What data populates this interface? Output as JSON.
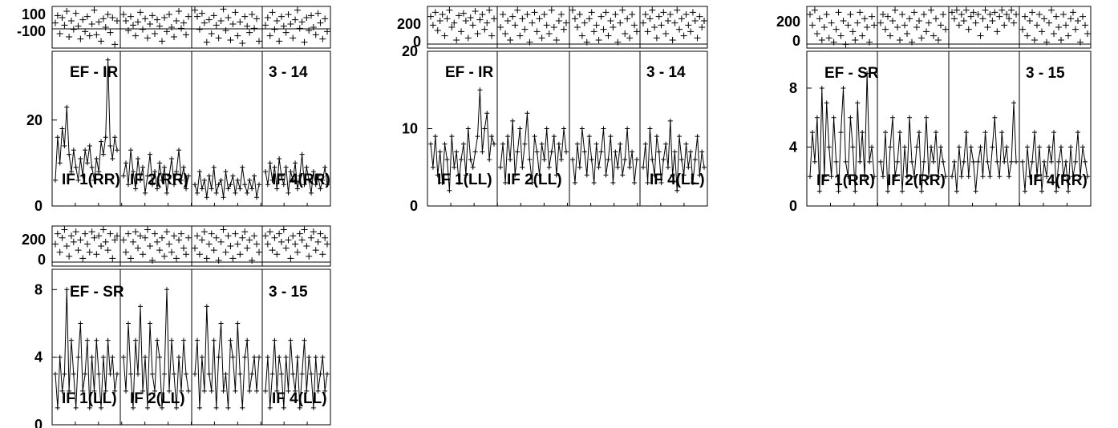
{
  "chart_data": [
    {
      "type": "line",
      "panel": "EF - IR",
      "baseline": "3 - 14",
      "phase_ticks": [
        "100",
        "-100"
      ],
      "phase_ylim": [
        -180,
        180
      ],
      "amp_ticks": [
        {
          "value": 0,
          "label": "0"
        },
        {
          "value": 20,
          "label": "20"
        }
      ],
      "amp_ylim": [
        0,
        36
      ],
      "segments": [
        {
          "label": "IF 1(RR)",
          "amp": [
            6,
            16,
            10,
            18,
            14,
            23,
            12,
            8,
            13,
            9,
            6,
            11,
            7,
            13,
            10,
            14,
            9,
            6,
            11,
            8,
            15,
            12,
            16,
            34,
            14,
            11,
            16,
            13
          ],
          "phase": [
            40,
            110,
            -60,
            90,
            20,
            150,
            -90,
            60,
            -20,
            130,
            10,
            -110,
            70,
            -40,
            100,
            -80,
            30,
            160,
            -70,
            50,
            -130,
            80,
            0,
            120,
            -50,
            90,
            -160,
            60
          ]
        },
        {
          "label": "IF 2(RR)",
          "amp": [
            7,
            10,
            5,
            13,
            8,
            4,
            11,
            6,
            9,
            3,
            7,
            12,
            5,
            8,
            4,
            10,
            6,
            9,
            3,
            7,
            11,
            5,
            8,
            13,
            6,
            9,
            4,
            7
          ],
          "phase": [
            120,
            60,
            -30,
            100,
            20,
            -80,
            50,
            140,
            -20,
            80,
            -100,
            30,
            110,
            -60,
            70,
            10,
            -130,
            90,
            -40,
            120,
            0,
            -90,
            60,
            150,
            -10,
            40,
            -70,
            100
          ]
        },
        {
          "label": "",
          "amp": [
            5,
            3,
            8,
            4,
            6,
            2,
            7,
            4,
            9,
            3,
            5,
            6,
            2,
            8,
            4,
            5,
            7,
            3,
            6,
            4,
            9,
            5,
            3,
            6,
            4,
            7,
            2,
            5
          ],
          "phase": [
            160,
            100,
            -20,
            130,
            40,
            -140,
            70,
            -60,
            110,
            20,
            -100,
            60,
            170,
            -30,
            90,
            -120,
            30,
            140,
            -80,
            50,
            -150,
            100,
            10,
            -50,
            120,
            -10,
            80,
            -130
          ]
        },
        {
          "label": "IF 4(RR)",
          "amp": [
            8,
            5,
            10,
            6,
            9,
            4,
            11,
            7,
            5,
            9,
            3,
            8,
            6,
            10,
            4,
            7,
            12,
            5,
            9,
            6,
            3,
            8,
            5,
            7,
            4,
            6,
            9,
            5
          ],
          "phase": [
            20,
            90,
            -80,
            140,
            -20,
            60,
            -130,
            100,
            10,
            -50,
            120,
            30,
            -100,
            70,
            160,
            -10,
            50,
            -140,
            90,
            -30,
            110,
            0,
            -70,
            130,
            40,
            -110,
            80,
            -40
          ]
        }
      ]
    },
    {
      "type": "line",
      "panel": "EF - IR",
      "baseline": "3 - 14",
      "phase_ticks": [
        "200",
        "0"
      ],
      "phase_ylim": [
        0,
        360
      ],
      "amp_ticks": [
        {
          "value": 0,
          "label": "0"
        },
        {
          "value": 10,
          "label": "10"
        },
        {
          "value": 20,
          "label": "20"
        }
      ],
      "amp_ylim": [
        0,
        20
      ],
      "segments": [
        {
          "label": "IF 1(LL)",
          "amp": [
            8,
            5,
            9,
            4,
            7,
            3,
            8,
            6,
            2,
            9,
            5,
            7,
            3,
            6,
            8,
            4,
            10,
            6,
            5,
            7,
            9,
            15,
            7,
            10,
            12,
            6,
            9,
            8
          ],
          "phase": [
            280,
            200,
            320,
            150,
            240,
            300,
            100,
            260,
            340,
            180,
            220,
            60,
            290,
            140,
            310,
            240,
            80,
            270,
            200,
            330,
            120,
            250,
            300,
            160,
            220,
            340,
            100,
            260
          ]
        },
        {
          "label": "IF 2(LL)",
          "amp": [
            5,
            8,
            3,
            9,
            6,
            11,
            4,
            7,
            10,
            5,
            8,
            12,
            6,
            3,
            9,
            7,
            4,
            8,
            6,
            10,
            5,
            7,
            9,
            4,
            8,
            6,
            10,
            7
          ],
          "phase": [
            180,
            300,
            120,
            240,
            60,
            280,
            200,
            340,
            100,
            260,
            160,
            300,
            40,
            220,
            320,
            140,
            260,
            80,
            300,
            200,
            120,
            340,
            180,
            60,
            240,
            300,
            160,
            220
          ]
        },
        {
          "label": "",
          "amp": [
            6,
            3,
            8,
            5,
            10,
            7,
            4,
            9,
            6,
            3,
            8,
            5,
            7,
            10,
            4,
            6,
            9,
            3,
            7,
            5,
            8,
            4,
            6,
            10,
            5,
            7,
            3,
            6
          ],
          "phase": [
            340,
            260,
            180,
            300,
            100,
            220,
            40,
            260,
            320,
            140,
            200,
            60,
            280,
            160,
            320,
            100,
            240,
            180,
            300,
            40,
            220,
            340,
            120,
            260,
            80,
            300,
            200,
            140
          ]
        },
        {
          "label": "IF 4(LL)",
          "amp": [
            5,
            8,
            3,
            10,
            6,
            4,
            9,
            7,
            3,
            6,
            8,
            5,
            11,
            4,
            7,
            2,
            9,
            6,
            4,
            8,
            5,
            7,
            3,
            6,
            9,
            4,
            7,
            5
          ],
          "phase": [
            220,
            300,
            140,
            260,
            340,
            180,
            80,
            280,
            200,
            320,
            120,
            240,
            300,
            60,
            220,
            340,
            160,
            260,
            100,
            300,
            200,
            140,
            320,
            240,
            80,
            280,
            180,
            240
          ]
        }
      ]
    },
    {
      "type": "line",
      "panel": "EF - SR",
      "baseline": "3 - 15",
      "phase_ticks": [
        "200",
        "0"
      ],
      "phase_ylim": [
        0,
        360
      ],
      "amp_ticks": [
        {
          "value": 0,
          "label": "0"
        },
        {
          "value": 4,
          "label": "4"
        },
        {
          "value": 8,
          "label": "8"
        }
      ],
      "amp_ylim": [
        0,
        10.5
      ],
      "segments": [
        {
          "label": "IF 1(RR)",
          "amp": [
            2,
            5,
            3,
            6,
            1,
            8,
            2,
            7,
            4,
            2,
            6,
            3,
            1,
            5,
            8,
            3,
            2,
            6,
            4,
            1,
            7,
            3,
            5,
            2,
            9,
            3,
            4,
            2
          ],
          "phase": [
            300,
            200,
            340,
            120,
            260,
            60,
            180,
            300,
            80,
            220,
            40,
            160,
            320,
            100,
            240,
            20,
            200,
            300,
            140,
            60,
            220,
            320,
            100,
            260,
            180,
            40,
            280,
            200
          ]
        },
        {
          "label": "IF 2(RR)",
          "amp": [
            3,
            2,
            5,
            1,
            4,
            6,
            2,
            3,
            5,
            1,
            4,
            2,
            6,
            3,
            2,
            4,
            5,
            1,
            3,
            6,
            2,
            4,
            3,
            5,
            2,
            4,
            3,
            2
          ],
          "phase": [
            220,
            300,
            160,
            280,
            100,
            240,
            340,
            180,
            60,
            300,
            200,
            120,
            260,
            40,
            320,
            180,
            240,
            80,
            300,
            140,
            220,
            340,
            100,
            260,
            60,
            200,
            300,
            160
          ]
        },
        {
          "label": "",
          "amp": [
            2,
            3,
            1,
            4,
            2,
            3,
            5,
            2,
            4,
            3,
            1,
            3,
            4,
            2,
            5,
            3,
            2,
            4,
            6,
            3,
            2,
            5,
            3,
            4,
            2,
            3,
            7,
            3
          ],
          "phase": [
            320,
            260,
            340,
            200,
            300,
            240,
            340,
            160,
            280,
            320,
            220,
            300,
            100,
            260,
            340,
            180,
            300,
            240,
            320,
            140,
            280,
            340,
            200,
            300,
            260,
            340,
            220,
            300
          ]
        },
        {
          "label": "IF 4(RR)",
          "amp": [
            3,
            1,
            4,
            2,
            3,
            5,
            2,
            4,
            1,
            3,
            2,
            4,
            3,
            5,
            1,
            3,
            4,
            2,
            3,
            1,
            4,
            2,
            3,
            5,
            2,
            4,
            3,
            2
          ],
          "phase": [
            160,
            280,
            100,
            240,
            320,
            60,
            200,
            300,
            140,
            260,
            40,
            220,
            340,
            120,
            280,
            180,
            60,
            300,
            200,
            100,
            260,
            320,
            160,
            240,
            40,
            280,
            200,
            120
          ]
        }
      ]
    },
    {
      "type": "line",
      "panel": "EF - SR",
      "baseline": "3 - 15",
      "phase_ticks": [
        "200",
        "0"
      ],
      "phase_ylim": [
        0,
        360
      ],
      "amp_ticks": [
        {
          "value": 0,
          "label": "0"
        },
        {
          "value": 4,
          "label": "4"
        },
        {
          "value": 8,
          "label": "8"
        }
      ],
      "amp_ylim": [
        0,
        9.2
      ],
      "segments": [
        {
          "label": "IF 1(LL)",
          "amp": [
            3,
            1,
            4,
            2,
            3,
            8,
            2,
            5,
            3,
            1,
            4,
            6,
            2,
            3,
            5,
            1,
            4,
            2,
            5,
            3,
            1,
            4,
            2,
            5,
            3,
            4,
            2,
            3
          ],
          "phase": [
            200,
            300,
            120,
            260,
            340,
            180,
            80,
            280,
            220,
            320,
            140,
            240,
            60,
            300,
            200,
            120,
            320,
            260,
            100,
            280,
            180,
            340,
            220,
            140,
            300,
            60,
            240,
            280
          ]
        },
        {
          "label": "IF 2(LL)",
          "amp": [
            4,
            2,
            6,
            3,
            1,
            5,
            3,
            7,
            2,
            4,
            1,
            6,
            3,
            2,
            5,
            4,
            1,
            3,
            8,
            2,
            5,
            3,
            1,
            4,
            2,
            5,
            3,
            2
          ],
          "phase": [
            240,
            120,
            300,
            60,
            220,
            320,
            160,
            280,
            100,
            260,
            340,
            180,
            40,
            300,
            220,
            140,
            260,
            80,
            320,
            200,
            120,
            280,
            60,
            240,
            300,
            160,
            100,
            260
          ]
        },
        {
          "label": "",
          "amp": [
            3,
            5,
            1,
            4,
            2,
            7,
            3,
            2,
            5,
            1,
            4,
            6,
            2,
            3,
            1,
            5,
            4,
            2,
            6,
            3,
            1,
            4,
            5,
            2,
            3,
            4,
            2,
            4
          ],
          "phase": [
            160,
            280,
            100,
            240,
            320,
            60,
            200,
            300,
            140,
            260,
            40,
            220,
            340,
            120,
            280,
            180,
            60,
            300,
            200,
            100,
            260,
            320,
            160,
            240,
            40,
            280,
            200,
            120
          ]
        },
        {
          "label": "IF 4(LL)",
          "amp": [
            2,
            4,
            1,
            3,
            5,
            2,
            4,
            3,
            1,
            4,
            2,
            5,
            3,
            2,
            4,
            1,
            3,
            5,
            2,
            4,
            3,
            1,
            4,
            2,
            3,
            4,
            2,
            3
          ],
          "phase": [
            280,
            200,
            320,
            140,
            260,
            100,
            300,
            220,
            340,
            160,
            240,
            60,
            280,
            200,
            120,
            300,
            240,
            340,
            180,
            80,
            260,
            320,
            140,
            220,
            300,
            100,
            260,
            200
          ]
        }
      ]
    }
  ]
}
